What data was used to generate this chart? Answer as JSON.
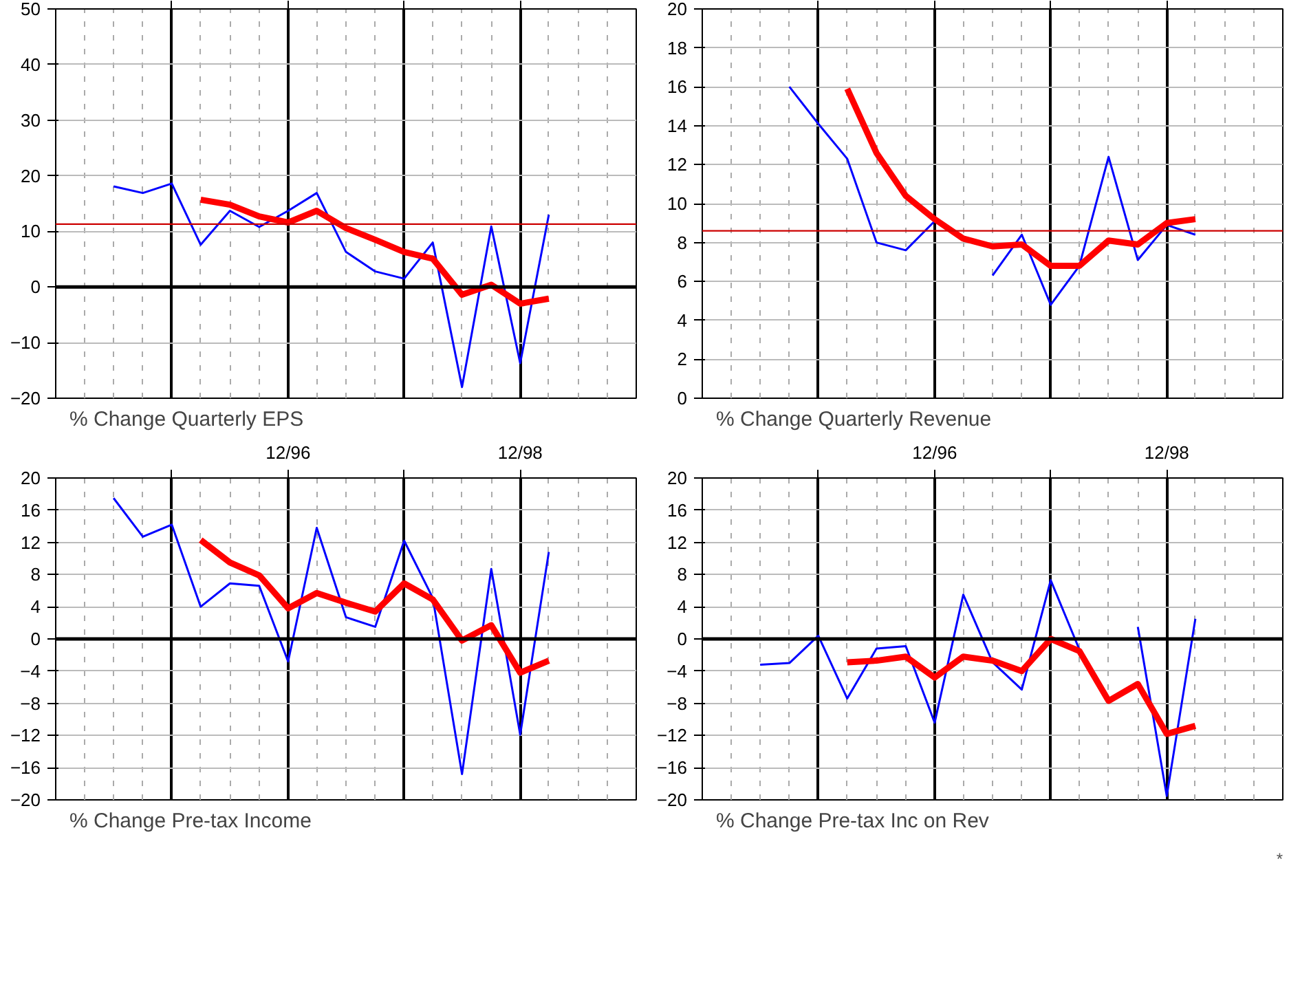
{
  "chart_data": [
    {
      "type": "line",
      "title": "% Change Quarterly EPS",
      "xlim": [
        "1994-12",
        "1999-12"
      ],
      "ylim": [
        -20,
        50
      ],
      "yticks": [
        -20,
        -10,
        0,
        10,
        20,
        30,
        40,
        50
      ],
      "xticks": [
        {
          "value": "1995-12",
          "label": null
        },
        {
          "value": "1996-12",
          "label": null
        },
        {
          "value": "1997-12",
          "label": null
        },
        {
          "value": "1998-12",
          "label": null
        }
      ],
      "tick_labels": "y",
      "grid": true,
      "series": [
        {
          "color": "#0000ff",
          "x": [
            "1995-06",
            "1995-09",
            "1995-12",
            "1996-03",
            "1996-06",
            "1996-09",
            "1996-12",
            "1997-03",
            "1997-06",
            "1997-09",
            "1997-12",
            "1998-03",
            "1998-06",
            "1998-09",
            "1998-12",
            "1999-03"
          ],
          "values": [
            18.1,
            16.9,
            18.6,
            7.6,
            13.7,
            10.8,
            13.7,
            16.9,
            6.3,
            2.8,
            1.5,
            8.0,
            -18.0,
            10.9,
            -13.7,
            13.0
          ]
        },
        {
          "color": "#ff0000",
          "x": [
            "1996-03",
            "1996-06",
            "1996-09",
            "1996-12",
            "1997-03",
            "1997-06",
            "1997-09",
            "1997-12",
            "1998-03",
            "1998-06",
            "1998-09",
            "1998-12",
            "1999-03"
          ],
          "values": [
            15.7,
            14.8,
            12.7,
            11.6,
            13.7,
            10.6,
            8.5,
            6.3,
            5.1,
            -1.4,
            0.4,
            -3.0,
            -2.1
          ]
        }
      ],
      "ref_lines": [
        {
          "axis": "y",
          "value": 0,
          "color": "#000000"
        },
        {
          "axis": "y",
          "value": 11.3,
          "color": "#cc0000"
        }
      ]
    },
    {
      "type": "line",
      "title": "% Change Quarterly Revenue",
      "xlim": [
        "1994-12",
        "1999-12"
      ],
      "ylim": [
        0,
        20
      ],
      "yticks": [
        0,
        2,
        4,
        6,
        8,
        10,
        12,
        14,
        16,
        18,
        20
      ],
      "xticks": [
        {
          "value": "1995-12",
          "label": null
        },
        {
          "value": "1996-12",
          "label": null
        },
        {
          "value": "1997-12",
          "label": null
        },
        {
          "value": "1998-12",
          "label": null
        }
      ],
      "tick_labels": "y",
      "grid": true,
      "series": [
        {
          "color": "#0000ff",
          "x": [
            "1995-09",
            "1995-12",
            "1996-03",
            "1996-06",
            "1996-09",
            "1996-12",
            "1997-03",
            "1997-06",
            "1997-09",
            "1997-12",
            "1998-03",
            "1998-06",
            "1998-09",
            "1998-12",
            "1999-03"
          ],
          "values": [
            16.0,
            14.1,
            12.3,
            8.0,
            7.6,
            9.1,
            null,
            6.3,
            8.4,
            4.8,
            6.8,
            12.4,
            7.1,
            8.9,
            8.4
          ]
        },
        {
          "color": "#ff0000",
          "x": [
            "1996-03",
            "1996-06",
            "1996-09",
            "1996-12",
            "1997-03",
            "1997-06",
            "1997-09",
            "1997-12",
            "1998-03",
            "1998-06",
            "1998-09",
            "1998-12",
            "1999-03"
          ],
          "values": [
            15.9,
            12.6,
            10.4,
            9.2,
            8.2,
            7.8,
            7.9,
            6.8,
            6.8,
            8.1,
            7.9,
            9.0,
            9.2
          ]
        }
      ],
      "ref_lines": [
        {
          "axis": "y",
          "value": 8.6,
          "color": "#cc0000"
        }
      ]
    },
    {
      "type": "line",
      "title": "% Change Pre-tax Income",
      "xlim": [
        "1994-12",
        "1999-12"
      ],
      "ylim": [
        -20,
        20
      ],
      "yticks": [
        -20,
        -16,
        -12,
        -8,
        -4,
        0,
        4,
        8,
        12,
        16,
        20
      ],
      "xticks": [
        {
          "value": "1995-12",
          "label": null
        },
        {
          "value": "1996-12",
          "label": "12/96"
        },
        {
          "value": "1997-12",
          "label": null
        },
        {
          "value": "1998-12",
          "label": "12/98"
        }
      ],
      "grid": true,
      "series": [
        {
          "color": "#0000ff",
          "x": [
            "1995-06",
            "1995-09",
            "1995-12",
            "1996-03",
            "1996-06",
            "1996-09",
            "1996-12",
            "1997-03",
            "1997-06",
            "1997-09",
            "1997-12",
            "1998-03",
            "1998-06",
            "1998-09",
            "1998-12",
            "1999-03"
          ],
          "values": [
            17.5,
            12.7,
            14.2,
            4.0,
            6.9,
            6.6,
            -2.8,
            13.8,
            2.7,
            1.5,
            12.2,
            5.1,
            -16.8,
            8.7,
            -11.9,
            10.8
          ]
        },
        {
          "color": "#ff0000",
          "x": [
            "1996-03",
            "1996-06",
            "1996-09",
            "1996-12",
            "1997-03",
            "1997-06",
            "1997-09",
            "1997-12",
            "1998-03",
            "1998-06",
            "1998-09",
            "1998-12",
            "1999-03"
          ],
          "values": [
            12.3,
            9.5,
            7.9,
            3.8,
            5.7,
            4.5,
            3.4,
            6.9,
            4.9,
            -0.2,
            1.7,
            -4.2,
            -2.7
          ]
        }
      ],
      "ref_lines": [
        {
          "axis": "y",
          "value": 0,
          "color": "#000000"
        }
      ]
    },
    {
      "type": "line",
      "title": "% Change Pre-tax Inc on Rev",
      "xlim": [
        "1994-12",
        "1999-12"
      ],
      "ylim": [
        -20,
        20
      ],
      "yticks": [
        -20,
        -16,
        -12,
        -8,
        -4,
        0,
        4,
        8,
        12,
        16,
        20
      ],
      "xticks": [
        {
          "value": "1995-12",
          "label": null
        },
        {
          "value": "1996-12",
          "label": "12/96"
        },
        {
          "value": "1997-12",
          "label": null
        },
        {
          "value": "1998-12",
          "label": "12/98"
        }
      ],
      "grid": true,
      "series": [
        {
          "color": "#0000ff",
          "x": [
            "1995-06",
            "1995-09",
            "1995-12",
            "1996-03",
            "1996-06",
            "1996-09",
            "1996-12",
            "1997-03",
            "1997-06",
            "1997-09",
            "1997-12",
            "1998-03",
            "1998-06",
            "1998-09",
            "1998-12",
            "1999-03"
          ],
          "values": [
            -3.2,
            -3.0,
            0.4,
            -7.4,
            -1.2,
            -0.9,
            -10.4,
            5.5,
            -2.9,
            -6.3,
            7.3,
            -1.3,
            null,
            1.5,
            -19.5,
            2.5
          ]
        },
        {
          "color": "#ff0000",
          "x": [
            "1996-03",
            "1996-06",
            "1996-09",
            "1996-12",
            "1997-03",
            "1997-06",
            "1997-09",
            "1997-12",
            "1998-03",
            "1998-06",
            "1998-09",
            "1998-12",
            "1999-03"
          ],
          "values": [
            -2.9,
            -2.7,
            -2.2,
            -4.8,
            -2.2,
            -2.7,
            -4.0,
            0.0,
            -1.5,
            -7.7,
            -5.6,
            -11.8,
            -10.8
          ]
        }
      ],
      "ref_lines": [
        {
          "axis": "y",
          "value": 0,
          "color": "#000000"
        }
      ],
      "annotations": [
        "*"
      ]
    }
  ]
}
